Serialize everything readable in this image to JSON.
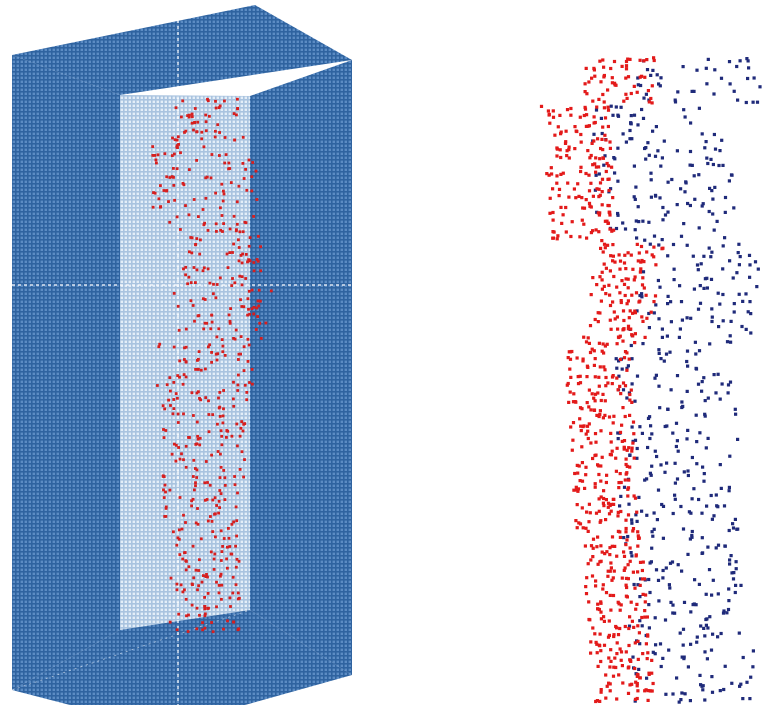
{
  "figure": {
    "left_panel": {
      "name": "voxel-box-with-body-points",
      "box_color": "#3a6ea5",
      "box_inner_color": "#b9cde3",
      "grid_line_color": "#ffffff",
      "point_color": "#d61f1f"
    },
    "right_panel": {
      "name": "body-point-cloud",
      "front_point_color": "#e31a1a",
      "back_point_color": "#1f2a7a"
    }
  }
}
